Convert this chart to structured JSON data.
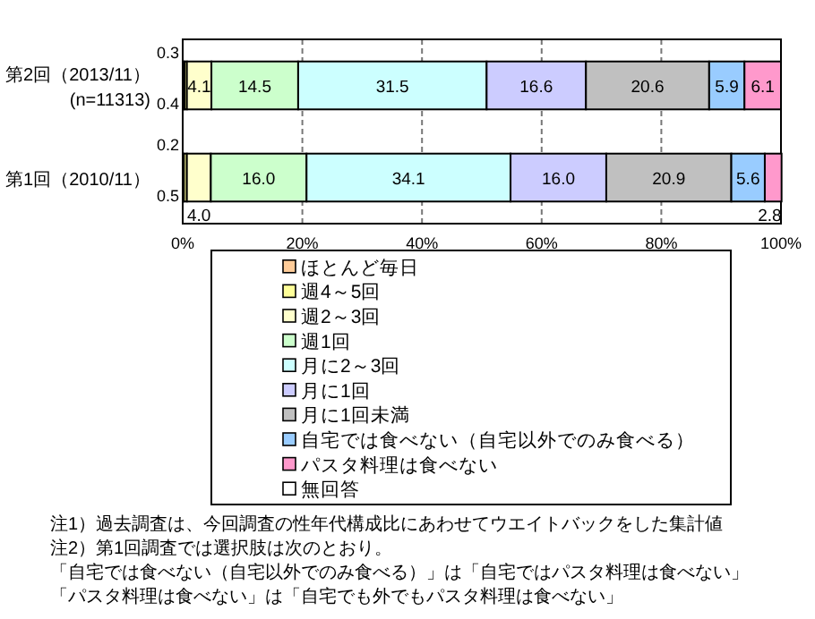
{
  "chart_data": {
    "type": "bar",
    "orientation": "horizontal",
    "stacked": true,
    "categories": [
      "第2回（2013/11）\n(n=11313)",
      "第1回（2010/11）"
    ],
    "series": [
      {
        "name": "ほとんど毎日",
        "color": "#ffcc99",
        "values": [
          0.3,
          0.2
        ],
        "value_labels": [
          "0.3",
          "0.2"
        ]
      },
      {
        "name": "週4～5回",
        "color": "#ffff99",
        "values": [
          0.4,
          0.5
        ],
        "value_labels": [
          "0.4",
          "0.5"
        ]
      },
      {
        "name": "週2～3回",
        "color": "#ffffcc",
        "values": [
          4.1,
          4.0
        ],
        "value_labels": [
          "4.1",
          "4.0"
        ]
      },
      {
        "name": "週1回",
        "color": "#ccffcc",
        "values": [
          14.5,
          16.0
        ],
        "value_labels": [
          "14.5",
          "16.0"
        ]
      },
      {
        "name": "月に2～3回",
        "color": "#ccffff",
        "values": [
          31.5,
          34.1
        ],
        "value_labels": [
          "31.5",
          "34.1"
        ]
      },
      {
        "name": "月に1回",
        "color": "#ccccff",
        "values": [
          16.6,
          16.0
        ],
        "value_labels": [
          "16.6",
          "16.0"
        ]
      },
      {
        "name": "月に1回未満",
        "color": "#c0c0c0",
        "values": [
          20.6,
          20.9
        ],
        "value_labels": [
          "20.6",
          "20.9"
        ]
      },
      {
        "name": "自宅では食べない（自宅以外でのみ食べる）",
        "color": "#99ccff",
        "values": [
          5.9,
          5.6
        ],
        "value_labels": [
          "5.9",
          "5.6"
        ]
      },
      {
        "name": "パスタ料理は食べない",
        "color": "#ff99cc",
        "values": [
          6.1,
          2.8
        ],
        "value_labels": [
          "6.1",
          "2.8"
        ]
      },
      {
        "name": "無回答",
        "color": "#ffffff",
        "values": [
          null,
          null
        ]
      }
    ],
    "xlim": [
      0,
      100
    ],
    "xticks": [
      {
        "value": 0,
        "label": "0%"
      },
      {
        "value": 20,
        "label": "20%"
      },
      {
        "value": 40,
        "label": "40%"
      },
      {
        "value": 60,
        "label": "60%"
      },
      {
        "value": 80,
        "label": "80%"
      },
      {
        "value": 100,
        "label": "100%"
      }
    ],
    "grid": "x",
    "legend": "bottom",
    "annotations": [
      "注1）過去調査は、今回調査の性年代構成比にあわせてウエイトバックをした集計値",
      "注2）第1回調査では選択肢は次のとおり。",
      "「自宅では食べない（自宅以外でのみ食べる）」は「自宅ではパスタ料理は食べない」",
      "「パスタ料理は食べない」は「自宅でも外でもパスタ料理は食べない」"
    ]
  }
}
